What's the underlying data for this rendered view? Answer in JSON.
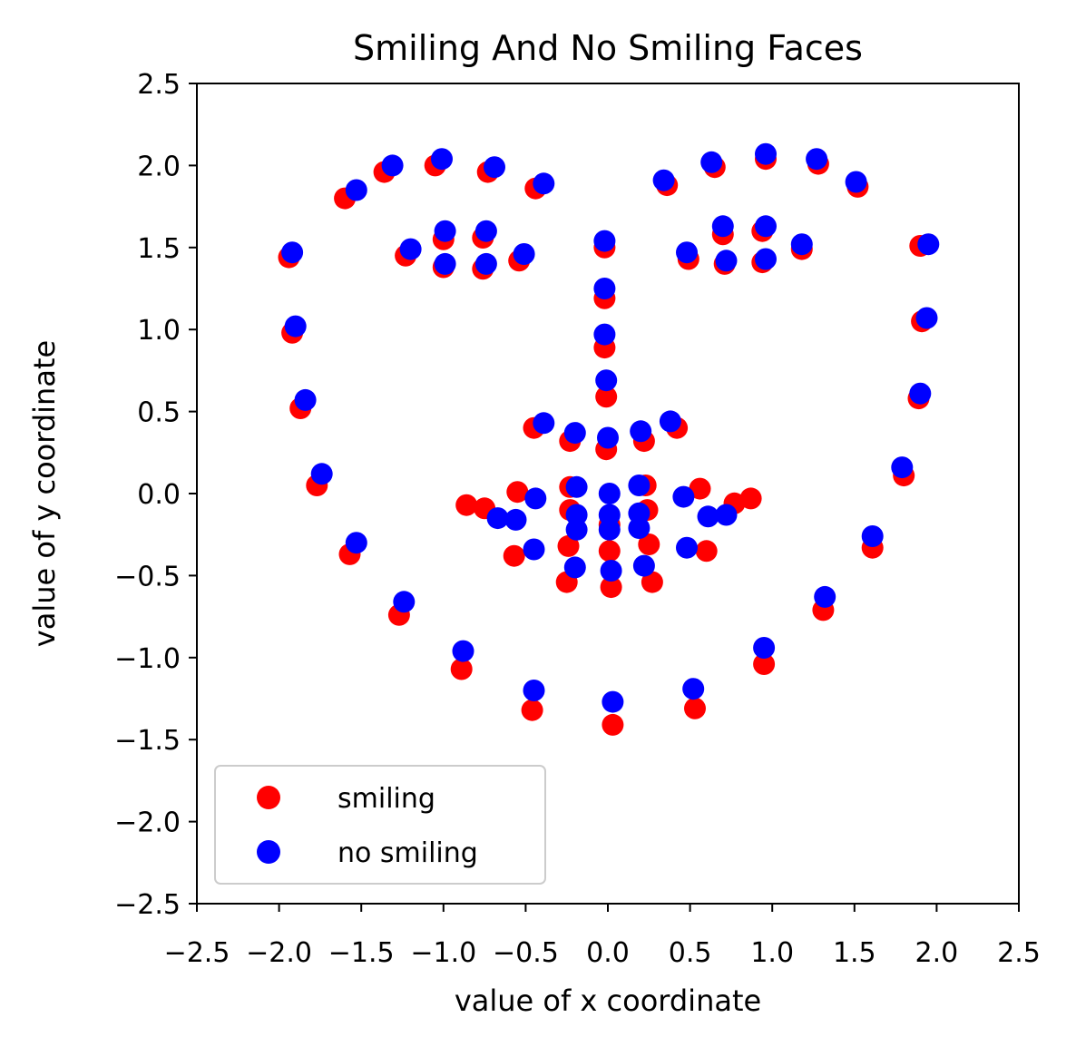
{
  "chart_data": {
    "type": "scatter",
    "title": "Smiling And No Smiling Faces",
    "xlabel": "value of x coordinate",
    "ylabel": "value of y coordinate",
    "xlim": [
      -2.5,
      2.5
    ],
    "ylim": [
      -2.5,
      2.5
    ],
    "xticks": [
      "−2.5",
      "−2.0",
      "−1.5",
      "−1.0",
      "−0.5",
      "0.0",
      "0.5",
      "1.0",
      "1.5",
      "2.0",
      "2.5"
    ],
    "yticks": [
      "−2.5",
      "−2.0",
      "−1.5",
      "−1.0",
      "−0.5",
      "0.0",
      "0.5",
      "1.0",
      "1.5",
      "2.0",
      "2.5"
    ],
    "grid": false,
    "legend_position": "lower-left",
    "series": [
      {
        "name": "smiling",
        "color": "#ff0000",
        "points": [
          [
            -1.94,
            1.44
          ],
          [
            -1.92,
            0.98
          ],
          [
            -1.87,
            0.52
          ],
          [
            -1.77,
            0.05
          ],
          [
            -1.57,
            -0.37
          ],
          [
            -1.27,
            -0.74
          ],
          [
            -0.89,
            -1.07
          ],
          [
            -0.46,
            -1.32
          ],
          [
            0.03,
            -1.41
          ],
          [
            0.53,
            -1.31
          ],
          [
            0.95,
            -1.04
          ],
          [
            1.31,
            -0.71
          ],
          [
            1.61,
            -0.33
          ],
          [
            1.8,
            0.11
          ],
          [
            1.89,
            0.58
          ],
          [
            1.91,
            1.05
          ],
          [
            1.9,
            1.51
          ],
          [
            -1.6,
            1.8
          ],
          [
            -1.36,
            1.96
          ],
          [
            -1.05,
            2.0
          ],
          [
            -0.73,
            1.96
          ],
          [
            -0.44,
            1.86
          ],
          [
            0.36,
            1.88
          ],
          [
            0.65,
            1.99
          ],
          [
            0.96,
            2.04
          ],
          [
            1.28,
            2.01
          ],
          [
            1.52,
            1.87
          ],
          [
            -1.23,
            1.45
          ],
          [
            -1.0,
            1.55
          ],
          [
            -0.76,
            1.56
          ],
          [
            -0.54,
            1.42
          ],
          [
            -0.76,
            1.37
          ],
          [
            -1.0,
            1.38
          ],
          [
            0.49,
            1.43
          ],
          [
            0.7,
            1.58
          ],
          [
            0.94,
            1.6
          ],
          [
            1.18,
            1.49
          ],
          [
            0.94,
            1.41
          ],
          [
            0.71,
            1.4
          ],
          [
            -0.02,
            1.5
          ],
          [
            -0.02,
            1.19
          ],
          [
            -0.02,
            0.89
          ],
          [
            -0.01,
            0.59
          ],
          [
            -0.01,
            0.27
          ],
          [
            -0.45,
            0.4
          ],
          [
            -0.23,
            0.32
          ],
          [
            0.22,
            0.32
          ],
          [
            0.42,
            0.4
          ],
          [
            -0.86,
            -0.07
          ],
          [
            -0.75,
            -0.09
          ],
          [
            -0.55,
            0.01
          ],
          [
            -0.57,
            -0.38
          ],
          [
            -0.23,
            0.04
          ],
          [
            -0.23,
            -0.1
          ],
          [
            -0.24,
            -0.32
          ],
          [
            -0.25,
            -0.54
          ],
          [
            0.01,
            -0.19
          ],
          [
            0.01,
            -0.35
          ],
          [
            0.02,
            -0.57
          ],
          [
            0.23,
            0.05
          ],
          [
            0.24,
            -0.1
          ],
          [
            0.25,
            -0.31
          ],
          [
            0.27,
            -0.54
          ],
          [
            0.56,
            0.03
          ],
          [
            0.6,
            -0.35
          ],
          [
            0.77,
            -0.06
          ],
          [
            0.87,
            -0.03
          ]
        ]
      },
      {
        "name": "no smiling",
        "color": "#0000ff",
        "points": [
          [
            -1.92,
            1.47
          ],
          [
            -1.9,
            1.02
          ],
          [
            -1.84,
            0.57
          ],
          [
            -1.74,
            0.12
          ],
          [
            -1.53,
            -0.3
          ],
          [
            -1.24,
            -0.66
          ],
          [
            -0.88,
            -0.96
          ],
          [
            -0.45,
            -1.2
          ],
          [
            0.03,
            -1.27
          ],
          [
            0.52,
            -1.19
          ],
          [
            0.95,
            -0.94
          ],
          [
            1.32,
            -0.63
          ],
          [
            1.61,
            -0.26
          ],
          [
            1.79,
            0.16
          ],
          [
            1.9,
            0.61
          ],
          [
            1.94,
            1.07
          ],
          [
            1.95,
            1.52
          ],
          [
            -1.53,
            1.85
          ],
          [
            -1.31,
            2.0
          ],
          [
            -1.01,
            2.04
          ],
          [
            -0.69,
            1.99
          ],
          [
            -0.39,
            1.89
          ],
          [
            0.34,
            1.91
          ],
          [
            0.63,
            2.02
          ],
          [
            0.96,
            2.07
          ],
          [
            1.27,
            2.04
          ],
          [
            1.51,
            1.9
          ],
          [
            -1.2,
            1.49
          ],
          [
            -0.99,
            1.6
          ],
          [
            -0.74,
            1.6
          ],
          [
            -0.51,
            1.46
          ],
          [
            -0.74,
            1.4
          ],
          [
            -0.99,
            1.4
          ],
          [
            0.48,
            1.47
          ],
          [
            0.7,
            1.63
          ],
          [
            0.96,
            1.63
          ],
          [
            1.18,
            1.52
          ],
          [
            0.96,
            1.43
          ],
          [
            0.72,
            1.42
          ],
          [
            -0.02,
            1.54
          ],
          [
            -0.02,
            1.25
          ],
          [
            -0.02,
            0.97
          ],
          [
            -0.01,
            0.69
          ],
          [
            0.0,
            0.34
          ],
          [
            -0.39,
            0.43
          ],
          [
            -0.2,
            0.37
          ],
          [
            0.2,
            0.38
          ],
          [
            0.38,
            0.44
          ],
          [
            -0.67,
            -0.15
          ],
          [
            -0.56,
            -0.16
          ],
          [
            -0.44,
            -0.03
          ],
          [
            -0.45,
            -0.34
          ],
          [
            -0.19,
            0.04
          ],
          [
            -0.19,
            -0.13
          ],
          [
            -0.19,
            -0.22
          ],
          [
            -0.2,
            -0.45
          ],
          [
            0.01,
            0.0
          ],
          [
            0.01,
            -0.13
          ],
          [
            0.01,
            -0.22
          ],
          [
            0.02,
            -0.47
          ],
          [
            0.19,
            0.05
          ],
          [
            0.19,
            -0.12
          ],
          [
            0.19,
            -0.21
          ],
          [
            0.22,
            -0.44
          ],
          [
            0.46,
            -0.02
          ],
          [
            0.48,
            -0.33
          ],
          [
            0.61,
            -0.14
          ],
          [
            0.72,
            -0.13
          ]
        ]
      }
    ]
  }
}
